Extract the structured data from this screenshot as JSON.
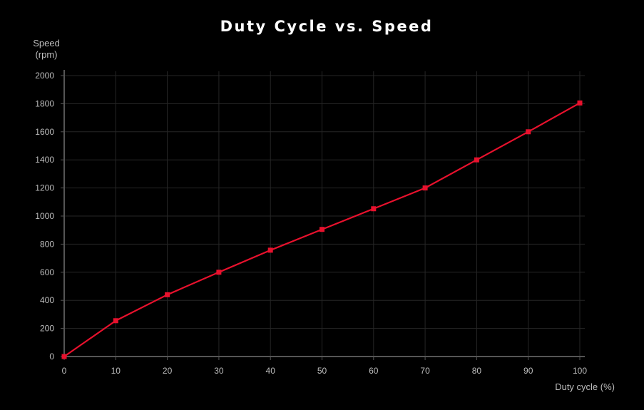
{
  "chart_data": {
    "type": "line",
    "title": "Duty Cycle vs. Speed",
    "xlabel": "Duty cycle (%)",
    "ylabel_lines": [
      "Speed",
      "(rpm)"
    ],
    "xlim": [
      0,
      100
    ],
    "ylim": [
      0,
      2000
    ],
    "x_ticks": [
      0,
      10,
      20,
      30,
      40,
      50,
      60,
      70,
      80,
      90,
      100
    ],
    "y_ticks": [
      0,
      200,
      400,
      600,
      800,
      1000,
      1200,
      1400,
      1600,
      1800,
      2000
    ],
    "grid": true,
    "series": [
      {
        "x": [
          0,
          10,
          20,
          30,
          40,
          50,
          60,
          70,
          80,
          90,
          100
        ],
        "values": [
          0,
          255,
          440,
          600,
          757,
          905,
          1052,
          1200,
          1400,
          1600,
          1805
        ],
        "color": "#e8112d",
        "marker": "square"
      }
    ]
  }
}
